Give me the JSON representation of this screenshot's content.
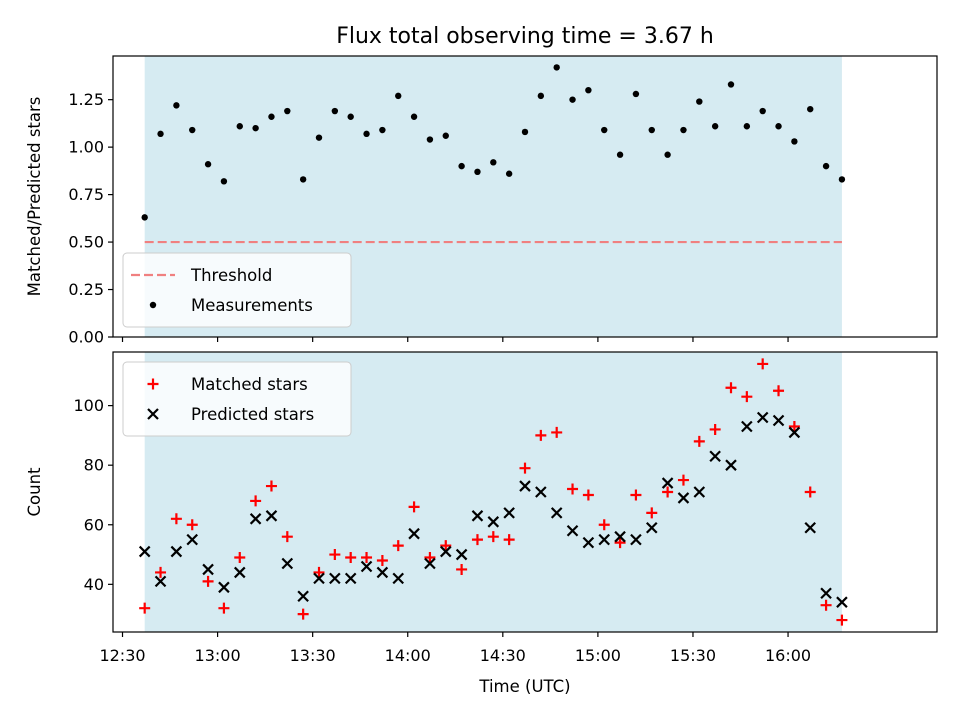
{
  "title": "Flux total observing time = 3.67 h",
  "xlabel": "Time (UTC)",
  "colors": {
    "band": "#add8e6",
    "threshold": "#f08080",
    "measurement": "#000000",
    "matched": "#ff0000",
    "predicted": "#000000"
  },
  "chart_data": [
    {
      "type": "scatter",
      "name": "ratio-panel",
      "ylabel": "Matched/Predicted stars",
      "ylim": [
        0,
        1.48
      ],
      "xlim": [
        "12:27",
        "16:47"
      ],
      "observing_window": [
        "12:37",
        "16:17"
      ],
      "yticks": [
        "0.00",
        "0.25",
        "0.50",
        "0.75",
        "1.00",
        "1.25"
      ],
      "legend_position": "lower-left",
      "threshold": {
        "name": "Threshold",
        "value": 0.5
      },
      "series": [
        {
          "name": "Measurements",
          "x": [
            "12:37",
            "12:42",
            "12:47",
            "12:52",
            "12:57",
            "13:02",
            "13:07",
            "13:12",
            "13:17",
            "13:22",
            "13:27",
            "13:32",
            "13:37",
            "13:42",
            "13:47",
            "13:52",
            "13:57",
            "14:02",
            "14:07",
            "14:12",
            "14:17",
            "14:22",
            "14:27",
            "14:32",
            "14:37",
            "14:42",
            "14:47",
            "14:52",
            "14:57",
            "15:02",
            "15:07",
            "15:12",
            "15:17",
            "15:22",
            "15:27",
            "15:32",
            "15:37",
            "15:42",
            "15:47",
            "15:52",
            "15:57",
            "16:02",
            "16:07",
            "16:12",
            "16:17"
          ],
          "y": [
            0.63,
            1.07,
            1.22,
            1.09,
            0.91,
            0.82,
            1.11,
            1.1,
            1.16,
            1.19,
            0.83,
            1.05,
            1.19,
            1.16,
            1.07,
            1.09,
            1.27,
            1.16,
            1.04,
            1.06,
            0.9,
            0.87,
            0.92,
            0.86,
            1.08,
            1.27,
            1.42,
            1.25,
            1.3,
            1.09,
            0.96,
            1.28,
            1.09,
            0.96,
            1.09,
            1.24,
            1.11,
            1.33,
            1.11,
            1.19,
            1.11,
            1.03,
            1.2,
            0.9,
            0.83
          ]
        }
      ]
    },
    {
      "type": "scatter",
      "name": "count-panel",
      "ylabel": "Count",
      "ylim": [
        24,
        118
      ],
      "xlim": [
        "12:27",
        "16:47"
      ],
      "observing_window": [
        "12:37",
        "16:17"
      ],
      "yticks": [
        "40",
        "60",
        "80",
        "100"
      ],
      "xticks": [
        "12:30",
        "13:00",
        "13:30",
        "14:00",
        "14:30",
        "15:00",
        "15:30",
        "16:00"
      ],
      "legend_position": "upper-left",
      "series": [
        {
          "name": "Matched stars",
          "x": [
            "12:37",
            "12:42",
            "12:47",
            "12:52",
            "12:57",
            "13:02",
            "13:07",
            "13:12",
            "13:17",
            "13:22",
            "13:27",
            "13:32",
            "13:37",
            "13:42",
            "13:47",
            "13:52",
            "13:57",
            "14:02",
            "14:07",
            "14:12",
            "14:17",
            "14:22",
            "14:27",
            "14:32",
            "14:37",
            "14:42",
            "14:47",
            "14:52",
            "14:57",
            "15:02",
            "15:07",
            "15:12",
            "15:17",
            "15:22",
            "15:27",
            "15:32",
            "15:37",
            "15:42",
            "15:47",
            "15:52",
            "15:57",
            "16:02",
            "16:07",
            "16:12",
            "16:17"
          ],
          "y": [
            32,
            44,
            62,
            60,
            41,
            32,
            49,
            68,
            73,
            56,
            30,
            44,
            50,
            49,
            49,
            48,
            53,
            66,
            49,
            53,
            45,
            55,
            56,
            55,
            79,
            90,
            91,
            72,
            70,
            60,
            54,
            70,
            64,
            71,
            75,
            88,
            92,
            106,
            103,
            114,
            105,
            93,
            71,
            33,
            28
          ]
        },
        {
          "name": "Predicted stars",
          "x": [
            "12:37",
            "12:42",
            "12:47",
            "12:52",
            "12:57",
            "13:02",
            "13:07",
            "13:12",
            "13:17",
            "13:22",
            "13:27",
            "13:32",
            "13:37",
            "13:42",
            "13:47",
            "13:52",
            "13:57",
            "14:02",
            "14:07",
            "14:12",
            "14:17",
            "14:22",
            "14:27",
            "14:32",
            "14:37",
            "14:42",
            "14:47",
            "14:52",
            "14:57",
            "15:02",
            "15:07",
            "15:12",
            "15:17",
            "15:22",
            "15:27",
            "15:32",
            "15:37",
            "15:42",
            "15:47",
            "15:52",
            "15:57",
            "16:02",
            "16:07",
            "16:12",
            "16:17"
          ],
          "y": [
            51,
            41,
            51,
            55,
            45,
            39,
            44,
            62,
            63,
            47,
            36,
            42,
            42,
            42,
            46,
            44,
            42,
            57,
            47,
            51,
            50,
            63,
            61,
            64,
            73,
            71,
            64,
            58,
            54,
            55,
            56,
            55,
            59,
            74,
            69,
            71,
            83,
            80,
            93,
            96,
            95,
            91,
            59,
            37,
            34
          ]
        }
      ]
    }
  ]
}
